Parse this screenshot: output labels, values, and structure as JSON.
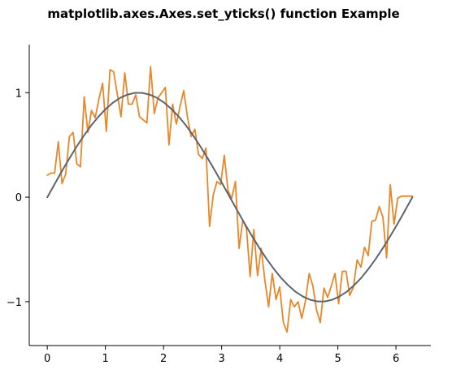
{
  "chart_data": {
    "type": "line",
    "title": "matplotlib.axes.Axes.set_yticks() function Example",
    "xlabel": "",
    "ylabel": "",
    "xlim": [
      -0.31,
      6.6
    ],
    "ylim": [
      -1.42,
      1.46
    ],
    "xticks": [
      0,
      1,
      2,
      3,
      4,
      5,
      6
    ],
    "xtick_labels": [
      "0",
      "1",
      "2",
      "3",
      "4",
      "5",
      "6"
    ],
    "yticks": [
      -1,
      0,
      1
    ],
    "ytick_labels": [
      "−1",
      "0",
      "1"
    ],
    "grid": false,
    "series": [
      {
        "style": "sine",
        "color": "#5a6570",
        "x": [
          0.0,
          0.126,
          0.251,
          0.377,
          0.503,
          0.628,
          0.754,
          0.88,
          1.005,
          1.131,
          1.257,
          1.382,
          1.508,
          1.634,
          1.759,
          1.885,
          2.011,
          2.136,
          2.262,
          2.388,
          2.513,
          2.639,
          2.765,
          2.89,
          3.016,
          3.142,
          3.267,
          3.393,
          3.519,
          3.644,
          3.77,
          3.896,
          4.021,
          4.147,
          4.273,
          4.398,
          4.524,
          4.65,
          4.775,
          4.901,
          5.027,
          5.152,
          5.278,
          5.404,
          5.529,
          5.655,
          5.781,
          5.906,
          6.032,
          6.158,
          6.283
        ],
        "y": [
          0.0,
          0.125,
          0.249,
          0.368,
          0.482,
          0.588,
          0.685,
          0.771,
          0.844,
          0.905,
          0.951,
          0.982,
          0.998,
          0.998,
          0.982,
          0.951,
          0.905,
          0.844,
          0.771,
          0.685,
          0.588,
          0.482,
          0.368,
          0.249,
          0.125,
          0.0,
          -0.125,
          -0.249,
          -0.368,
          -0.482,
          -0.588,
          -0.685,
          -0.771,
          -0.844,
          -0.905,
          -0.951,
          -0.982,
          -0.998,
          -0.998,
          -0.982,
          -0.951,
          -0.905,
          -0.844,
          -0.771,
          -0.685,
          -0.588,
          -0.482,
          -0.368,
          -0.249,
          -0.125,
          0.0
        ]
      },
      {
        "style": "noisy",
        "color": "#e8872a",
        "x": [
          0.0,
          0.063,
          0.127,
          0.19,
          0.254,
          0.317,
          0.381,
          0.444,
          0.508,
          0.571,
          0.635,
          0.698,
          0.762,
          0.825,
          0.889,
          0.952,
          1.016,
          1.079,
          1.142,
          1.206,
          1.269,
          1.333,
          1.396,
          1.46,
          1.523,
          1.587,
          1.65,
          1.714,
          1.777,
          1.841,
          1.904,
          1.968,
          2.031,
          2.094,
          2.158,
          2.221,
          2.285,
          2.348,
          2.412,
          2.475,
          2.539,
          2.602,
          2.666,
          2.729,
          2.793,
          2.856,
          2.92,
          2.983,
          3.046,
          3.11,
          3.173,
          3.237,
          3.3,
          3.364,
          3.427,
          3.491,
          3.554,
          3.618,
          3.681,
          3.745,
          3.808,
          3.871,
          3.935,
          3.998,
          4.062,
          4.125,
          4.189,
          4.252,
          4.316,
          4.379,
          4.443,
          4.506,
          4.57,
          4.633,
          4.697,
          4.76,
          4.823,
          4.887,
          4.95,
          5.014,
          5.077,
          5.141,
          5.204,
          5.268,
          5.331,
          5.395,
          5.458,
          5.522,
          5.585,
          5.649,
          5.712,
          5.775,
          5.839,
          5.902,
          5.966,
          6.029,
          6.093,
          6.156,
          6.22,
          6.283
        ],
        "y": [
          0.21,
          0.23,
          0.23,
          0.53,
          0.13,
          0.22,
          0.58,
          0.62,
          0.32,
          0.29,
          0.96,
          0.62,
          0.83,
          0.76,
          0.94,
          1.09,
          0.63,
          1.22,
          1.2,
          0.98,
          0.77,
          1.19,
          0.89,
          0.89,
          0.98,
          0.77,
          0.74,
          0.71,
          1.25,
          0.8,
          0.95,
          1.0,
          1.05,
          0.5,
          0.89,
          0.7,
          0.87,
          1.02,
          0.77,
          0.58,
          0.65,
          0.41,
          0.37,
          0.47,
          -0.28,
          0.02,
          0.15,
          0.12,
          0.4,
          0.06,
          -0.01,
          0.15,
          -0.49,
          -0.22,
          -0.3,
          -0.76,
          -0.31,
          -0.75,
          -0.49,
          -0.8,
          -1.05,
          -0.73,
          -0.98,
          -0.86,
          -1.2,
          -1.29,
          -0.98,
          -1.05,
          -1.0,
          -1.16,
          -0.99,
          -0.73,
          -0.85,
          -1.08,
          -1.2,
          -0.87,
          -0.96,
          -0.85,
          -0.73,
          -1.02,
          -0.71,
          -0.71,
          -0.94,
          -0.86,
          -0.6,
          -0.67,
          -0.48,
          -0.56,
          -0.23,
          -0.22,
          -0.09,
          -0.19,
          -0.58,
          0.12,
          -0.26,
          -0.01,
          0.01,
          0.01,
          0.01,
          0.01
        ]
      }
    ]
  }
}
